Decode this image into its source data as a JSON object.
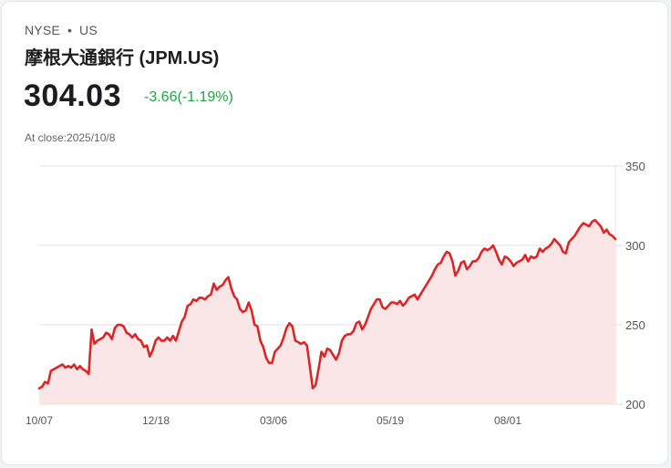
{
  "header": {
    "exchange": "NYSE",
    "separator": "•",
    "market": "US",
    "title": "摩根大通銀行 (JPM.US)",
    "price": "304.03",
    "change": "-3.66(-1.19%)",
    "close_label": "At close:2025/10/8"
  },
  "colors": {
    "line": "#dc2626",
    "fill": "#fbe6e7",
    "change": "#1fa547",
    "grid": "#e2e2e2"
  },
  "chart_data": {
    "type": "area",
    "title": "JPM.US price",
    "xlabel": "",
    "ylabel": "",
    "ylim": [
      200,
      350
    ],
    "yticks": [
      350,
      300,
      250,
      200
    ],
    "xtick_labels": [
      "10/07",
      "12/18",
      "03/06",
      "05/19",
      "08/01"
    ],
    "grid": true,
    "axis_position": "right",
    "x_start": "2024/10/07",
    "x_end": "2025/10/08",
    "values": [
      210,
      211,
      214,
      213,
      221,
      222,
      223,
      224,
      225,
      223,
      224,
      223,
      225,
      222,
      224,
      222,
      221,
      219,
      247,
      238,
      240,
      241,
      242,
      245,
      244,
      241,
      248,
      250,
      250,
      249,
      245,
      244,
      242,
      244,
      241,
      240,
      236,
      237,
      230,
      234,
      240,
      242,
      240,
      240,
      242,
      240,
      243,
      240,
      246,
      252,
      255,
      262,
      263,
      266,
      265,
      267,
      267,
      266,
      268,
      269,
      276,
      272,
      274,
      275,
      278,
      280,
      273,
      268,
      266,
      260,
      258,
      259,
      264,
      259,
      250,
      249,
      240,
      236,
      229,
      226,
      226,
      233,
      235,
      237,
      242,
      248,
      251,
      249,
      240,
      239,
      238,
      239,
      237,
      224,
      210,
      212,
      222,
      233,
      230,
      235,
      234,
      231,
      228,
      232,
      240,
      243,
      244,
      244,
      246,
      251,
      252,
      247,
      250,
      255,
      260,
      263,
      266,
      266,
      261,
      260,
      262,
      264,
      264,
      263,
      265,
      262,
      264,
      267,
      268,
      269,
      266,
      269,
      272,
      275,
      278,
      281,
      285,
      288,
      289,
      293,
      296,
      295,
      290,
      281,
      284,
      289,
      290,
      285,
      287,
      290,
      290,
      292,
      296,
      298,
      297,
      298,
      300,
      296,
      291,
      288,
      293,
      292,
      290,
      287,
      289,
      290,
      291,
      294,
      290,
      293,
      292,
      293,
      298,
      296,
      298,
      299,
      301,
      304,
      302,
      300,
      296,
      295,
      302,
      304,
      306,
      309,
      312,
      314,
      313,
      312,
      315,
      316,
      314,
      312,
      308,
      310,
      307,
      306,
      304
    ]
  }
}
